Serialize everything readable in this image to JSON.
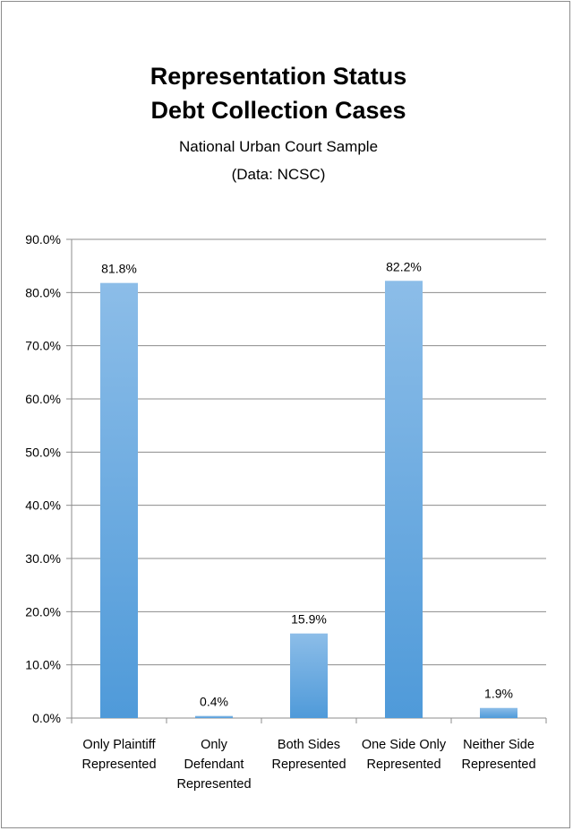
{
  "chart_data": {
    "type": "bar",
    "title": [
      "Representation Status",
      "Debt Collection Cases"
    ],
    "subtitle": [
      "National Urban Court Sample",
      "(Data: NCSC)"
    ],
    "categories": [
      [
        "Only Plaintiff",
        "Represented"
      ],
      [
        "Only",
        "Defendant",
        "Represented"
      ],
      [
        "Both Sides",
        "Represented"
      ],
      [
        "One Side Only",
        "Represented"
      ],
      [
        "Neither Side",
        "Represented"
      ]
    ],
    "values": [
      81.8,
      0.4,
      15.9,
      82.2,
      1.9
    ],
    "data_labels": [
      "81.8%",
      "0.4%",
      "15.9%",
      "82.2%",
      "1.9%"
    ],
    "yticks": [
      "0.0%",
      "10.0%",
      "20.0%",
      "30.0%",
      "40.0%",
      "50.0%",
      "60.0%",
      "70.0%",
      "80.0%",
      "90.0%"
    ],
    "ylim": [
      0,
      90
    ],
    "ytick_step": 10,
    "xlabel": "",
    "ylabel": "",
    "grid": true,
    "legend": "none",
    "colors": {
      "bar_top": "#8cbde8",
      "bar_bottom": "#4f9ad9",
      "grid": "#8c8c8c"
    }
  }
}
